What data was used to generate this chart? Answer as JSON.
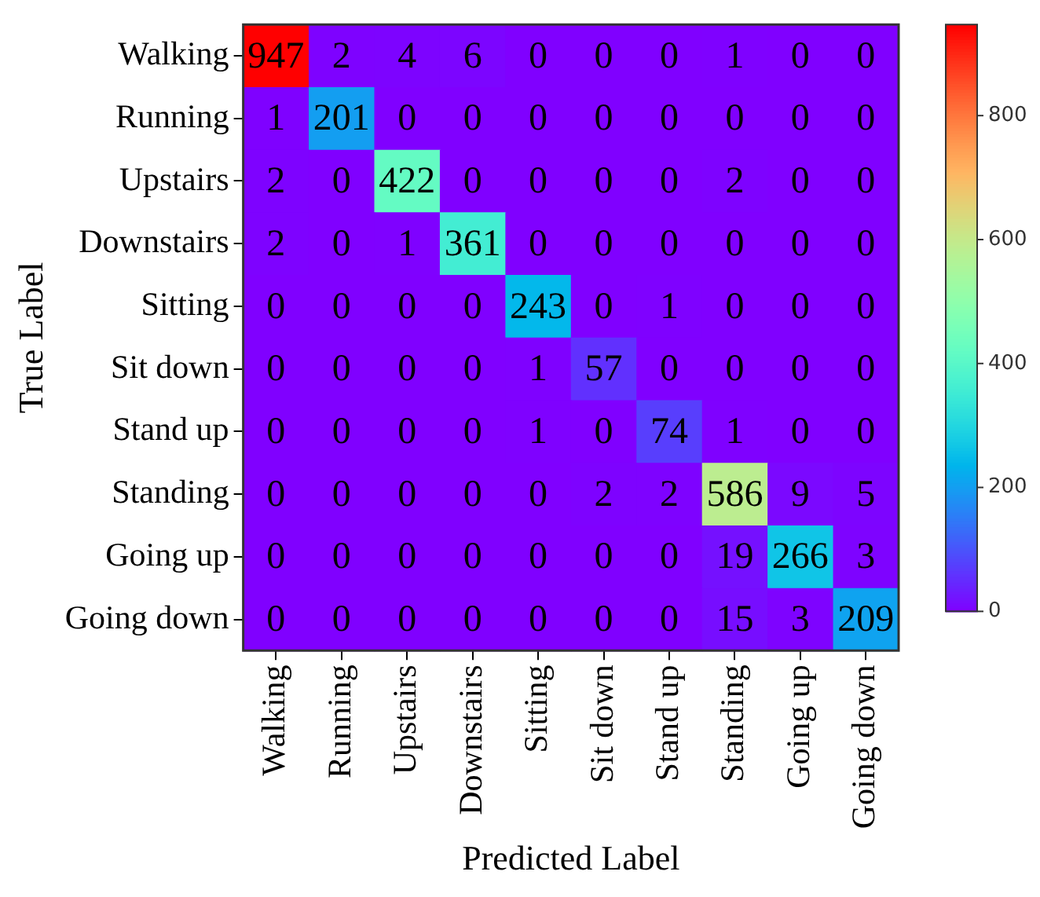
{
  "chart_data": {
    "type": "heatmap",
    "xlabel": "Predicted Label",
    "ylabel": "True Label",
    "categories": [
      "Walking",
      "Running",
      "Upstairs",
      "Downstairs",
      "Sitting",
      "Sit down",
      "Stand up",
      "Standing",
      "Going up",
      "Going down"
    ],
    "y_categories": [
      "Walking",
      "Running",
      "Upstairs",
      "Downstairs",
      "Sitting",
      "Sit down",
      "Stand up",
      "Standing",
      "Going up",
      "Going down"
    ],
    "cells": [
      [
        947,
        2,
        4,
        6,
        0,
        0,
        0,
        1,
        0,
        0
      ],
      [
        1,
        201,
        0,
        0,
        0,
        0,
        0,
        0,
        0,
        0
      ],
      [
        2,
        0,
        422,
        0,
        0,
        0,
        0,
        2,
        0,
        0
      ],
      [
        2,
        0,
        1,
        361,
        0,
        0,
        0,
        0,
        0,
        0
      ],
      [
        0,
        0,
        0,
        0,
        243,
        0,
        1,
        0,
        0,
        0
      ],
      [
        0,
        0,
        0,
        0,
        1,
        57,
        0,
        0,
        0,
        0
      ],
      [
        0,
        0,
        0,
        0,
        1,
        0,
        74,
        1,
        0,
        0
      ],
      [
        0,
        0,
        0,
        0,
        0,
        2,
        2,
        586,
        9,
        5
      ],
      [
        0,
        0,
        0,
        0,
        0,
        0,
        0,
        19,
        266,
        3
      ],
      [
        0,
        0,
        0,
        0,
        0,
        0,
        0,
        15,
        3,
        209
      ]
    ],
    "clim": [
      0,
      947
    ],
    "cticks": [
      0,
      200,
      400,
      600,
      800
    ],
    "data_labels": true
  }
}
